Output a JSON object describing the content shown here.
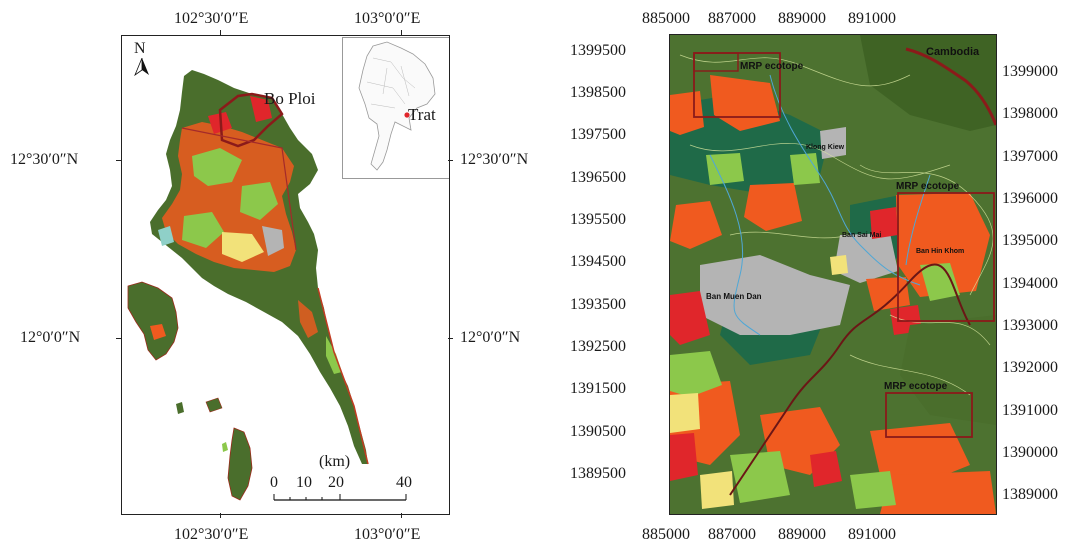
{
  "left_map": {
    "lon_labels": [
      "102°30′0″E",
      "103°0′0″E"
    ],
    "lat_labels": [
      "12°30′0″N",
      "12°0′0″N"
    ],
    "north": "N",
    "place_bo_ploi": "Bo Ploi",
    "inset_place": "Trat",
    "scale_unit": "(km)",
    "scale_ticks": [
      "0",
      "10",
      "20",
      "40"
    ]
  },
  "right_map": {
    "x_ticks": [
      "885000",
      "887000",
      "889000",
      "891000"
    ],
    "y_ticks_left": [
      "1399500",
      "1398500",
      "1397500",
      "1396500",
      "1395500",
      "1394500",
      "1393500",
      "1392500",
      "1391500",
      "1390500",
      "1389500"
    ],
    "y_ticks_right": [
      "1399000",
      "1398000",
      "1397000",
      "1396000",
      "1395000",
      "1394000",
      "1393000",
      "1392000",
      "1391000",
      "1390000",
      "1389000"
    ],
    "country": "Cambodia",
    "ecotope_1": "MRP ecotope",
    "ecotope_2": "MRP ecotope",
    "ecotope_3": "MRP ecotope",
    "village_klong": "Klong Kiew",
    "village_sai_mai": "Ban Sai Mai",
    "village_hin_khom": "Ban Hin Khom",
    "village_muen_dan": "Ban Muen Dan"
  },
  "colors": {
    "forest": "#4a6e2c",
    "dark_forest": "#1f6a48",
    "orange": "#f05a1f",
    "red": "#e0262b",
    "light_green": "#8cc84b",
    "yellow": "#f2e27a",
    "gray": "#b4b4b4",
    "boundary": "#8b1a1a"
  }
}
